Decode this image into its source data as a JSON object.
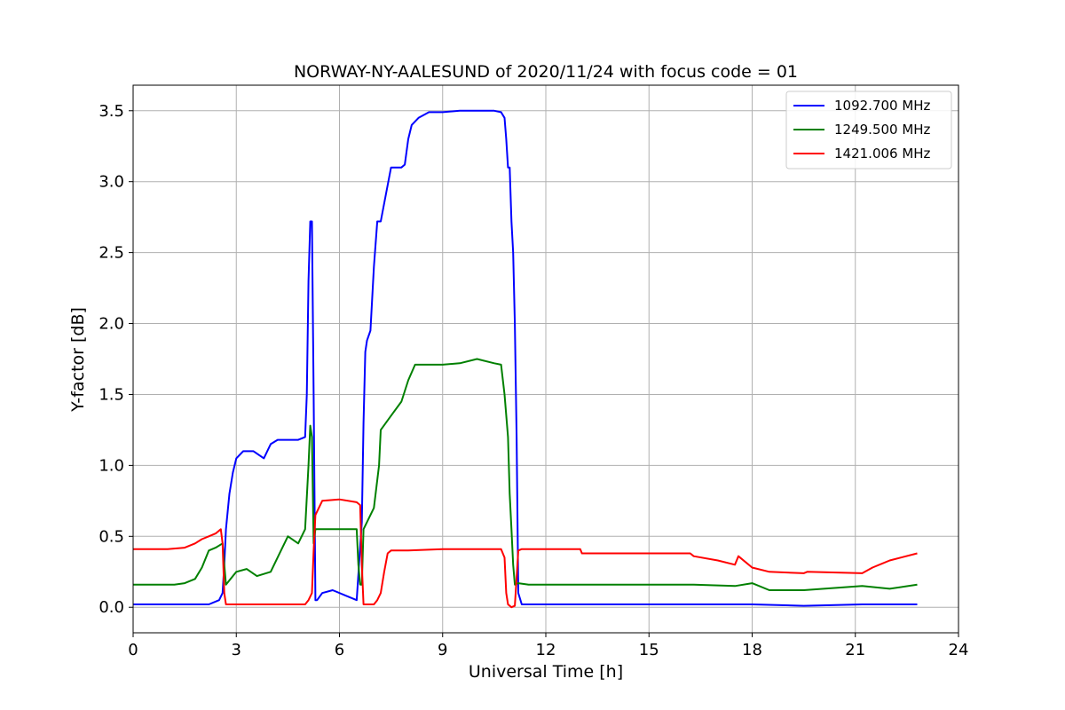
{
  "chart_data": {
    "type": "line",
    "title": "NORWAY-NY-AALESUND of 2020/11/24 with focus code = 01",
    "xlabel": "Universal Time [h]",
    "ylabel": "Y-factor [dB]",
    "xlim": [
      0,
      24
    ],
    "ylim": [
      -0.18,
      3.68
    ],
    "xticks": [
      0,
      3,
      6,
      9,
      12,
      15,
      18,
      21,
      24
    ],
    "xtick_labels": [
      "0",
      "3",
      "6",
      "9",
      "12",
      "15",
      "18",
      "21",
      "24"
    ],
    "yticks": [
      0.0,
      0.5,
      1.0,
      1.5,
      2.0,
      2.5,
      3.0,
      3.5
    ],
    "ytick_labels": [
      "0.0",
      "0.5",
      "1.0",
      "1.5",
      "2.0",
      "2.5",
      "3.0",
      "3.5"
    ],
    "grid": true,
    "legend_position": "top-right",
    "series": [
      {
        "name": "1092.700 MHz",
        "color": "#0000ff",
        "x": [
          0.0,
          2.2,
          2.5,
          2.6,
          2.65,
          2.7,
          2.8,
          2.9,
          3.0,
          3.2,
          3.5,
          3.8,
          4.0,
          4.2,
          4.5,
          4.8,
          5.0,
          5.05,
          5.1,
          5.15,
          5.2,
          5.25,
          5.3,
          5.35,
          5.5,
          5.8,
          6.2,
          6.5,
          6.65,
          6.7,
          6.75,
          6.8,
          6.9,
          7.0,
          7.1,
          7.15,
          7.2,
          7.5,
          7.8,
          7.9,
          8.0,
          8.1,
          8.3,
          8.6,
          9.0,
          9.5,
          10.0,
          10.5,
          10.7,
          10.8,
          10.85,
          10.9,
          10.95,
          11.0,
          11.05,
          11.1,
          11.15,
          11.2,
          11.3,
          11.5,
          12.0,
          15.0,
          16.3,
          17.5,
          18.0,
          19.5,
          21.2,
          22.0,
          22.8
        ],
        "y": [
          0.02,
          0.02,
          0.05,
          0.1,
          0.3,
          0.55,
          0.8,
          0.95,
          1.05,
          1.1,
          1.1,
          1.05,
          1.15,
          1.18,
          1.18,
          1.18,
          1.2,
          1.5,
          2.3,
          2.72,
          2.72,
          1.5,
          0.05,
          0.05,
          0.1,
          0.12,
          0.08,
          0.05,
          0.6,
          1.3,
          1.8,
          1.88,
          1.95,
          2.4,
          2.72,
          2.72,
          2.72,
          3.1,
          3.1,
          3.12,
          3.3,
          3.4,
          3.45,
          3.49,
          3.49,
          3.5,
          3.5,
          3.5,
          3.49,
          3.45,
          3.3,
          3.1,
          3.1,
          2.72,
          2.5,
          2.0,
          1.2,
          0.1,
          0.02,
          0.02,
          0.02,
          0.02,
          0.02,
          0.02,
          0.02,
          0.01,
          0.02,
          0.02,
          0.02
        ]
      },
      {
        "name": "1249.500 MHz",
        "color": "#008000",
        "x": [
          0.0,
          1.2,
          1.5,
          1.8,
          2.0,
          2.2,
          2.4,
          2.6,
          2.65,
          2.7,
          3.0,
          3.3,
          3.6,
          4.0,
          4.3,
          4.5,
          4.8,
          5.0,
          5.1,
          5.15,
          5.2,
          5.25,
          5.3,
          5.5,
          6.0,
          6.5,
          6.55,
          6.6,
          6.65,
          6.7,
          6.8,
          7.0,
          7.15,
          7.2,
          7.5,
          7.8,
          8.0,
          8.2,
          9.0,
          9.5,
          10.0,
          10.5,
          10.7,
          10.8,
          10.9,
          10.95,
          11.0,
          11.05,
          11.1,
          11.2,
          11.5,
          12.0,
          15.0,
          16.3,
          17.5,
          18.0,
          18.5,
          19.5,
          21.2,
          22.0,
          22.8
        ],
        "y": [
          0.16,
          0.16,
          0.17,
          0.2,
          0.28,
          0.4,
          0.42,
          0.45,
          0.3,
          0.16,
          0.25,
          0.27,
          0.22,
          0.25,
          0.4,
          0.5,
          0.45,
          0.55,
          1.0,
          1.28,
          1.2,
          0.45,
          0.55,
          0.55,
          0.55,
          0.55,
          0.3,
          0.16,
          0.16,
          0.55,
          0.6,
          0.7,
          1.0,
          1.25,
          1.35,
          1.45,
          1.6,
          1.71,
          1.71,
          1.72,
          1.75,
          1.72,
          1.71,
          1.5,
          1.2,
          0.8,
          0.55,
          0.3,
          0.16,
          0.17,
          0.16,
          0.16,
          0.16,
          0.16,
          0.15,
          0.17,
          0.12,
          0.12,
          0.15,
          0.13,
          0.16
        ]
      },
      {
        "name": "1421.006 MHz",
        "color": "#ff0000",
        "x": [
          0.0,
          1.0,
          1.5,
          1.8,
          2.0,
          2.2,
          2.4,
          2.55,
          2.6,
          2.65,
          2.7,
          3.0,
          4.0,
          5.0,
          5.1,
          5.2,
          5.25,
          5.3,
          5.5,
          6.0,
          6.5,
          6.6,
          6.65,
          6.7,
          7.0,
          7.1,
          7.2,
          7.3,
          7.4,
          7.5,
          8.0,
          9.0,
          10.0,
          10.7,
          10.8,
          10.85,
          10.9,
          11.0,
          11.1,
          11.2,
          11.3,
          12.0,
          13.0,
          13.05,
          15.0,
          16.2,
          16.3,
          17.0,
          17.5,
          17.6,
          18.0,
          18.5,
          19.5,
          19.6,
          21.2,
          21.5,
          22.0,
          22.8
        ],
        "y": [
          0.41,
          0.41,
          0.42,
          0.45,
          0.48,
          0.5,
          0.52,
          0.55,
          0.45,
          0.1,
          0.02,
          0.02,
          0.02,
          0.02,
          0.05,
          0.1,
          0.4,
          0.65,
          0.75,
          0.76,
          0.74,
          0.72,
          0.3,
          0.02,
          0.02,
          0.05,
          0.1,
          0.25,
          0.38,
          0.4,
          0.4,
          0.41,
          0.41,
          0.41,
          0.35,
          0.1,
          0.02,
          0.0,
          0.01,
          0.4,
          0.41,
          0.41,
          0.41,
          0.38,
          0.38,
          0.38,
          0.36,
          0.33,
          0.3,
          0.36,
          0.28,
          0.25,
          0.24,
          0.25,
          0.24,
          0.28,
          0.33,
          0.38
        ]
      }
    ]
  }
}
